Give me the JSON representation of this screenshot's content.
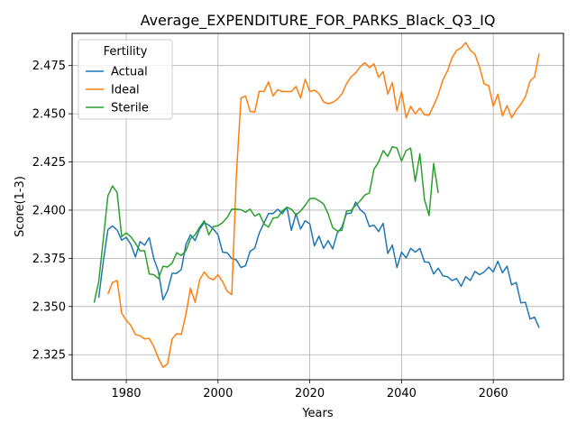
{
  "chart_data": {
    "type": "line",
    "title": "Average_EXPENDITURE_FOR_PARKS_Black_Q3_IQ",
    "xlabel": "Years",
    "ylabel": "Score(1-3)",
    "xlim": [
      1968.2,
      2075.3
    ],
    "ylim": [
      2.312,
      2.4917
    ],
    "xticks": [
      1980,
      2000,
      2020,
      2040,
      2060
    ],
    "yticks": [
      2.325,
      2.35,
      2.375,
      2.4,
      2.425,
      2.45,
      2.475
    ],
    "grid": true,
    "legend": {
      "title": "Fertility",
      "placement": "top-left"
    },
    "series": [
      {
        "name": "Actual",
        "color": "#1f77b4",
        "x": [
          1974,
          1975,
          1976,
          1977,
          1978,
          1979,
          1980,
          1981,
          1982,
          1983,
          1984,
          1985,
          1986,
          1987,
          1988,
          1989,
          1990,
          1991,
          1992,
          1993,
          1994,
          1995,
          1996,
          1997,
          1998,
          1999,
          2000,
          2001,
          2002,
          2003,
          2004,
          2005,
          2006,
          2007,
          2008,
          2009,
          2010,
          2011,
          2012,
          2013,
          2014,
          2015,
          2016,
          2017,
          2018,
          2019,
          2020,
          2021,
          2022,
          2023,
          2024,
          2025,
          2026,
          2027,
          2028,
          2029,
          2030,
          2031,
          2032,
          2033,
          2034,
          2035,
          2036,
          2037,
          2038,
          2039,
          2040,
          2041,
          2042,
          2043,
          2044,
          2045,
          2046,
          2047,
          2048,
          2049,
          2050,
          2051,
          2052,
          2053,
          2054,
          2055,
          2056,
          2057,
          2058,
          2059,
          2060,
          2061,
          2062,
          2063,
          2064,
          2065,
          2066,
          2067,
          2068,
          2069,
          2070
        ],
        "values": [
          2.3545,
          2.3735,
          2.3899,
          2.3918,
          2.3897,
          2.3844,
          2.3859,
          2.3823,
          2.3757,
          2.3837,
          2.3818,
          2.3857,
          2.3749,
          2.3682,
          2.3535,
          2.3582,
          2.3672,
          2.3672,
          2.3692,
          2.3822,
          2.3872,
          2.3842,
          2.3902,
          2.3935,
          2.3922,
          2.3902,
          2.3872,
          2.3782,
          2.3779,
          2.3749,
          2.3742,
          2.3702,
          2.3712,
          2.3787,
          2.3802,
          2.3882,
          2.3932,
          2.3982,
          2.3982,
          2.4005,
          2.3982,
          2.4015,
          2.3895,
          2.3982,
          2.3902,
          2.3945,
          2.3929,
          2.3815,
          2.3865,
          2.3802,
          2.3842,
          2.3799,
          2.3882,
          2.3912,
          2.3982,
          2.3985,
          2.4042,
          2.4002,
          2.3982,
          2.3915,
          2.3922,
          2.3889,
          2.3932,
          2.3775,
          2.3819,
          2.3702,
          2.3782,
          2.3752,
          2.3802,
          2.3782,
          2.3802,
          2.3732,
          2.3729,
          2.3669,
          2.3699,
          2.3659,
          2.3655,
          2.3635,
          2.3645,
          2.3605,
          2.3655,
          2.3635,
          2.3682,
          2.3665,
          2.3679,
          2.3705,
          2.3679,
          2.3735,
          2.3675,
          2.3709,
          2.3612,
          2.3625,
          2.3519,
          2.3522,
          2.3435,
          2.3445,
          2.3389
        ]
      },
      {
        "name": "Ideal",
        "color": "#ff7f0e",
        "x": [
          1976,
          1977,
          1978,
          1979,
          1980,
          1981,
          1982,
          1983,
          1984,
          1985,
          1986,
          1987,
          1988,
          1989,
          1990,
          1991,
          1992,
          1993,
          1994,
          1995,
          1996,
          1997,
          1998,
          1999,
          2000,
          2001,
          2002,
          2003,
          2004,
          2005,
          2006,
          2007,
          2008,
          2009,
          2010,
          2011,
          2012,
          2013,
          2014,
          2015,
          2016,
          2017,
          2018,
          2019,
          2020,
          2021,
          2022,
          2023,
          2024,
          2025,
          2026,
          2027,
          2028,
          2029,
          2030,
          2031,
          2032,
          2033,
          2034,
          2035,
          2036,
          2037,
          2038,
          2039,
          2040,
          2041,
          2042,
          2043,
          2044,
          2045,
          2046,
          2047,
          2048,
          2049,
          2050,
          2051,
          2052,
          2053,
          2054,
          2055,
          2056,
          2057,
          2058,
          2059,
          2060,
          2061,
          2062,
          2063,
          2064,
          2065,
          2066,
          2067,
          2068,
          2069,
          2070
        ],
        "values": [
          2.3565,
          2.3625,
          2.3635,
          2.3465,
          2.3429,
          2.3402,
          2.3355,
          2.3349,
          2.3332,
          2.3335,
          2.3292,
          2.3232,
          2.3185,
          2.3202,
          2.3332,
          2.3359,
          2.3355,
          2.3459,
          2.3595,
          2.3522,
          2.3639,
          2.3679,
          2.3649,
          2.3639,
          2.3665,
          2.3629,
          2.3579,
          2.3562,
          2.4182,
          2.4582,
          2.4592,
          2.4512,
          2.4509,
          2.4617,
          2.4615,
          2.4665,
          2.4592,
          2.4625,
          2.4615,
          2.4615,
          2.4615,
          2.4642,
          2.4582,
          2.4679,
          2.4615,
          2.4622,
          2.4605,
          2.4562,
          2.4552,
          2.4559,
          2.4575,
          2.4602,
          2.4655,
          2.4692,
          2.4712,
          2.4745,
          2.4765,
          2.4739,
          2.4759,
          2.4689,
          2.4719,
          2.4602,
          2.4662,
          2.4515,
          2.4615,
          2.4479,
          2.4539,
          2.4499,
          2.4529,
          2.4495,
          2.4492,
          2.4542,
          2.4599,
          2.4675,
          2.4722,
          2.4789,
          2.4829,
          2.4842,
          2.4869,
          2.4829,
          2.4809,
          2.4742,
          2.4655,
          2.4645,
          2.4539,
          2.4602,
          2.4489,
          2.4542,
          2.4479,
          2.4519,
          2.4549,
          2.4589,
          2.4669,
          2.4692,
          2.4812
        ]
      },
      {
        "name": "Sterile",
        "color": "#2ca02c",
        "x": [
          1973,
          1974,
          1975,
          1976,
          1977,
          1978,
          1979,
          1980,
          1981,
          1982,
          1983,
          1984,
          1985,
          1986,
          1987,
          1988,
          1989,
          1990,
          1991,
          1992,
          1993,
          1994,
          1995,
          1996,
          1997,
          1998,
          1999,
          2000,
          2001,
          2002,
          2003,
          2004,
          2005,
          2006,
          2007,
          2008,
          2009,
          2010,
          2011,
          2012,
          2013,
          2014,
          2015,
          2016,
          2017,
          2018,
          2019,
          2020,
          2021,
          2022,
          2023,
          2024,
          2025,
          2026,
          2027,
          2028,
          2029,
          2030,
          2031,
          2032,
          2033,
          2034,
          2035,
          2036,
          2037,
          2038,
          2039,
          2040,
          2041,
          2042,
          2043,
          2044,
          2045,
          2046,
          2047,
          2048
        ],
        "values": [
          2.3519,
          2.3629,
          2.3849,
          2.4075,
          2.4125,
          2.4092,
          2.3862,
          2.3882,
          2.3862,
          2.3829,
          2.3789,
          2.3789,
          2.3669,
          2.3665,
          2.3645,
          2.3709,
          2.3705,
          2.3725,
          2.3779,
          2.3765,
          2.3789,
          2.3852,
          2.3872,
          2.3912,
          2.3945,
          2.3872,
          2.3915,
          2.3919,
          2.3935,
          2.3962,
          2.4005,
          2.4005,
          2.4002,
          2.3989,
          2.4005,
          2.3969,
          2.3982,
          2.3929,
          2.3912,
          2.3959,
          2.3962,
          2.3995,
          2.4015,
          2.4005,
          2.3975,
          2.3995,
          2.4025,
          2.4059,
          2.4062,
          2.4049,
          2.4032,
          2.3982,
          2.3909,
          2.3892,
          2.3895,
          2.3995,
          2.3999,
          2.4025,
          2.4049,
          2.4079,
          2.4089,
          2.4212,
          2.4249,
          2.4309,
          2.4279,
          2.4329,
          2.4322,
          2.4255,
          2.4309,
          2.4322,
          2.4149,
          2.4292,
          2.4055,
          2.3972,
          2.4242,
          2.4089
        ]
      }
    ]
  }
}
